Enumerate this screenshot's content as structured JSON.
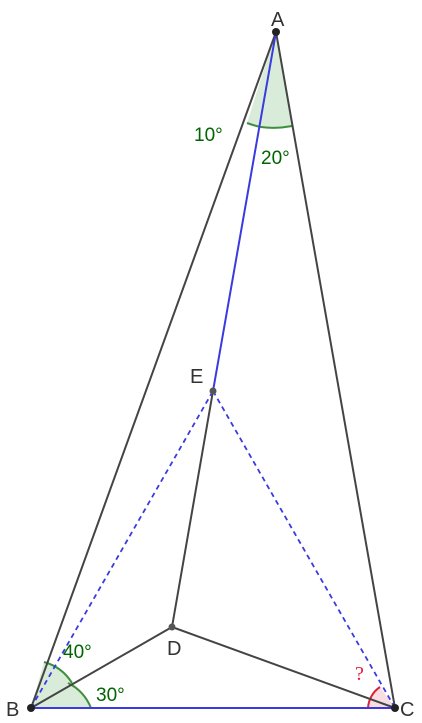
{
  "points": {
    "A": "A",
    "B": "B",
    "C": "C",
    "D": "D",
    "E": "E"
  },
  "angles": {
    "BAE": "10°",
    "EAC": "20°",
    "ABD": "40°",
    "DBC": "30°",
    "ECB": "?"
  },
  "colors": {
    "triangle_edge": "#444444",
    "blue_segment": "#3a3ae0",
    "angle_green_fill": "#d9ebd9",
    "angle_green_stroke": "#3d8f3d",
    "angle_label_green": "#006400",
    "angle_red_fill": "#f8dde2",
    "angle_red_stroke": "#e0203a",
    "point_dot": "#222222"
  }
}
